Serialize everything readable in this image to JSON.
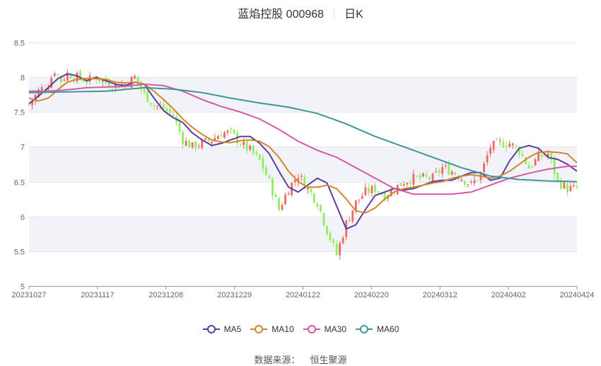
{
  "header": {
    "stock_name_code": "蓝焰控股 000968",
    "period": "日K"
  },
  "source": {
    "label": "数据来源：",
    "provider": "恒生聚源"
  },
  "colors": {
    "up": "#ee6666",
    "down": "#91ee5f",
    "ma5": "#5b3e9e",
    "ma10": "#d4862f",
    "ma30": "#d45aa6",
    "ma60": "#3f9696",
    "band": "#f2f3f8",
    "grid": "#e6e6e6"
  },
  "chart_data": {
    "type": "candlestick",
    "ylim": [
      5,
      8.5
    ],
    "yticks": [
      "5",
      "5.5",
      "6",
      "6.5",
      "7",
      "7.5",
      "8",
      "8.5"
    ],
    "x_tick_labels": [
      "20231027",
      "20231117",
      "20231208",
      "20231229",
      "20240122",
      "20240220",
      "20240312",
      "20240402",
      "20240424"
    ],
    "legend": [
      "MA5",
      "MA10",
      "MA30",
      "MA60"
    ],
    "ma": {
      "MA5": [
        [
          0,
          7.62
        ],
        [
          3,
          7.73
        ],
        [
          6,
          7.85
        ],
        [
          9,
          7.98
        ],
        [
          12,
          8.05
        ],
        [
          15,
          8.02
        ],
        [
          18,
          7.95
        ],
        [
          21,
          8.0
        ],
        [
          24,
          7.95
        ],
        [
          27,
          7.9
        ],
        [
          30,
          7.88
        ],
        [
          33,
          7.93
        ],
        [
          36,
          7.9
        ],
        [
          39,
          7.7
        ],
        [
          42,
          7.52
        ],
        [
          45,
          7.42
        ],
        [
          48,
          7.35
        ],
        [
          51,
          7.2
        ],
        [
          54,
          7.1
        ],
        [
          57,
          7.02
        ],
        [
          60,
          7.05
        ],
        [
          63,
          7.1
        ],
        [
          66,
          7.15
        ],
        [
          69,
          7.15
        ],
        [
          72,
          7.05
        ],
        [
          75,
          6.9
        ],
        [
          78,
          6.65
        ],
        [
          81,
          6.42
        ],
        [
          84,
          6.35
        ],
        [
          87,
          6.45
        ],
        [
          90,
          6.55
        ],
        [
          93,
          6.48
        ],
        [
          96,
          6.15
        ],
        [
          99,
          5.82
        ],
        [
          102,
          5.88
        ],
        [
          105,
          6.1
        ],
        [
          108,
          6.3
        ],
        [
          111,
          6.35
        ],
        [
          114,
          6.4
        ],
        [
          117,
          6.38
        ],
        [
          120,
          6.4
        ],
        [
          123,
          6.45
        ],
        [
          126,
          6.5
        ],
        [
          129,
          6.52
        ],
        [
          132,
          6.52
        ],
        [
          135,
          6.58
        ],
        [
          138,
          6.63
        ],
        [
          141,
          6.63
        ],
        [
          144,
          6.52
        ],
        [
          147,
          6.55
        ],
        [
          150,
          6.8
        ],
        [
          153,
          6.98
        ],
        [
          156,
          7.02
        ],
        [
          159,
          6.98
        ],
        [
          162,
          6.85
        ],
        [
          165,
          6.82
        ],
        [
          168,
          6.75
        ],
        [
          171,
          6.65
        ]
      ],
      "MA10": [
        [
          0,
          7.7
        ],
        [
          3,
          7.66
        ],
        [
          6,
          7.7
        ],
        [
          9,
          7.82
        ],
        [
          12,
          7.93
        ],
        [
          15,
          7.97
        ],
        [
          18,
          7.98
        ],
        [
          21,
          7.98
        ],
        [
          24,
          7.97
        ],
        [
          27,
          7.93
        ],
        [
          30,
          7.92
        ],
        [
          33,
          7.93
        ],
        [
          36,
          7.9
        ],
        [
          39,
          7.8
        ],
        [
          42,
          7.68
        ],
        [
          45,
          7.55
        ],
        [
          48,
          7.4
        ],
        [
          51,
          7.28
        ],
        [
          54,
          7.18
        ],
        [
          57,
          7.1
        ],
        [
          60,
          7.07
        ],
        [
          63,
          7.06
        ],
        [
          66,
          7.09
        ],
        [
          69,
          7.1
        ],
        [
          72,
          7.08
        ],
        [
          75,
          7.0
        ],
        [
          78,
          6.85
        ],
        [
          81,
          6.65
        ],
        [
          84,
          6.5
        ],
        [
          87,
          6.42
        ],
        [
          90,
          6.42
        ],
        [
          93,
          6.45
        ],
        [
          96,
          6.4
        ],
        [
          99,
          6.25
        ],
        [
          102,
          6.08
        ],
        [
          105,
          6.05
        ],
        [
          108,
          6.12
        ],
        [
          111,
          6.25
        ],
        [
          114,
          6.35
        ],
        [
          117,
          6.4
        ],
        [
          120,
          6.42
        ],
        [
          123,
          6.45
        ],
        [
          126,
          6.48
        ],
        [
          129,
          6.5
        ],
        [
          132,
          6.55
        ],
        [
          135,
          6.58
        ],
        [
          138,
          6.6
        ],
        [
          141,
          6.58
        ],
        [
          144,
          6.55
        ],
        [
          147,
          6.58
        ],
        [
          150,
          6.65
        ],
        [
          153,
          6.75
        ],
        [
          156,
          6.85
        ],
        [
          159,
          6.92
        ],
        [
          162,
          6.93
        ],
        [
          165,
          6.92
        ],
        [
          168,
          6.9
        ],
        [
          171,
          6.77
        ]
      ],
      "MA30": [
        [
          0,
          7.8
        ],
        [
          6,
          7.8
        ],
        [
          12,
          7.82
        ],
        [
          18,
          7.85
        ],
        [
          24,
          7.86
        ],
        [
          30,
          7.87
        ],
        [
          36,
          7.9
        ],
        [
          42,
          7.88
        ],
        [
          48,
          7.8
        ],
        [
          54,
          7.68
        ],
        [
          60,
          7.58
        ],
        [
          66,
          7.5
        ],
        [
          72,
          7.4
        ],
        [
          78,
          7.25
        ],
        [
          84,
          7.08
        ],
        [
          90,
          6.95
        ],
        [
          96,
          6.85
        ],
        [
          102,
          6.7
        ],
        [
          108,
          6.55
        ],
        [
          114,
          6.4
        ],
        [
          120,
          6.32
        ],
        [
          126,
          6.32
        ],
        [
          132,
          6.32
        ],
        [
          138,
          6.35
        ],
        [
          144,
          6.45
        ],
        [
          150,
          6.55
        ],
        [
          156,
          6.62
        ],
        [
          162,
          6.68
        ],
        [
          168,
          6.72
        ],
        [
          171,
          6.72
        ]
      ],
      "MA60": [
        [
          0,
          7.78
        ],
        [
          12,
          7.79
        ],
        [
          24,
          7.8
        ],
        [
          36,
          7.85
        ],
        [
          45,
          7.83
        ],
        [
          54,
          7.78
        ],
        [
          63,
          7.7
        ],
        [
          72,
          7.63
        ],
        [
          81,
          7.57
        ],
        [
          90,
          7.48
        ],
        [
          99,
          7.33
        ],
        [
          108,
          7.15
        ],
        [
          117,
          7.0
        ],
        [
          126,
          6.85
        ],
        [
          135,
          6.7
        ],
        [
          144,
          6.58
        ],
        [
          153,
          6.53
        ],
        [
          162,
          6.51
        ],
        [
          171,
          6.5
        ]
      ]
    },
    "anchors": [
      [
        0,
        7.6
      ],
      [
        3,
        7.8
      ],
      [
        6,
        7.9
      ],
      [
        8,
        8.1
      ],
      [
        10,
        7.95
      ],
      [
        12,
        8.05
      ],
      [
        15,
        8.0
      ],
      [
        18,
        7.95
      ],
      [
        21,
        8.0
      ],
      [
        24,
        7.92
      ],
      [
        27,
        7.88
      ],
      [
        30,
        7.9
      ],
      [
        33,
        8.0
      ],
      [
        36,
        7.75
      ],
      [
        39,
        7.6
      ],
      [
        42,
        7.55
      ],
      [
        45,
        7.45
      ],
      [
        48,
        7.1
      ],
      [
        51,
        7.0
      ],
      [
        54,
        7.05
      ],
      [
        57,
        7.1
      ],
      [
        60,
        7.2
      ],
      [
        63,
        7.2
      ],
      [
        66,
        7.05
      ],
      [
        69,
        6.95
      ],
      [
        72,
        6.8
      ],
      [
        75,
        6.5
      ],
      [
        78,
        6.1
      ],
      [
        81,
        6.4
      ],
      [
        84,
        6.6
      ],
      [
        87,
        6.4
      ],
      [
        90,
        6.2
      ],
      [
        93,
        5.8
      ],
      [
        96,
        5.45
      ],
      [
        99,
        5.9
      ],
      [
        102,
        6.2
      ],
      [
        105,
        6.35
      ],
      [
        108,
        6.4
      ],
      [
        111,
        6.3
      ],
      [
        114,
        6.4
      ],
      [
        117,
        6.5
      ],
      [
        120,
        6.55
      ],
      [
        123,
        6.55
      ],
      [
        126,
        6.55
      ],
      [
        129,
        6.7
      ],
      [
        132,
        6.65
      ],
      [
        135,
        6.55
      ],
      [
        138,
        6.45
      ],
      [
        141,
        6.6
      ],
      [
        144,
        7.0
      ],
      [
        147,
        7.05
      ],
      [
        150,
        7.05
      ],
      [
        153,
        6.95
      ],
      [
        156,
        6.7
      ],
      [
        159,
        6.85
      ],
      [
        162,
        6.9
      ],
      [
        165,
        6.5
      ],
      [
        168,
        6.4
      ],
      [
        171,
        6.4
      ]
    ]
  }
}
